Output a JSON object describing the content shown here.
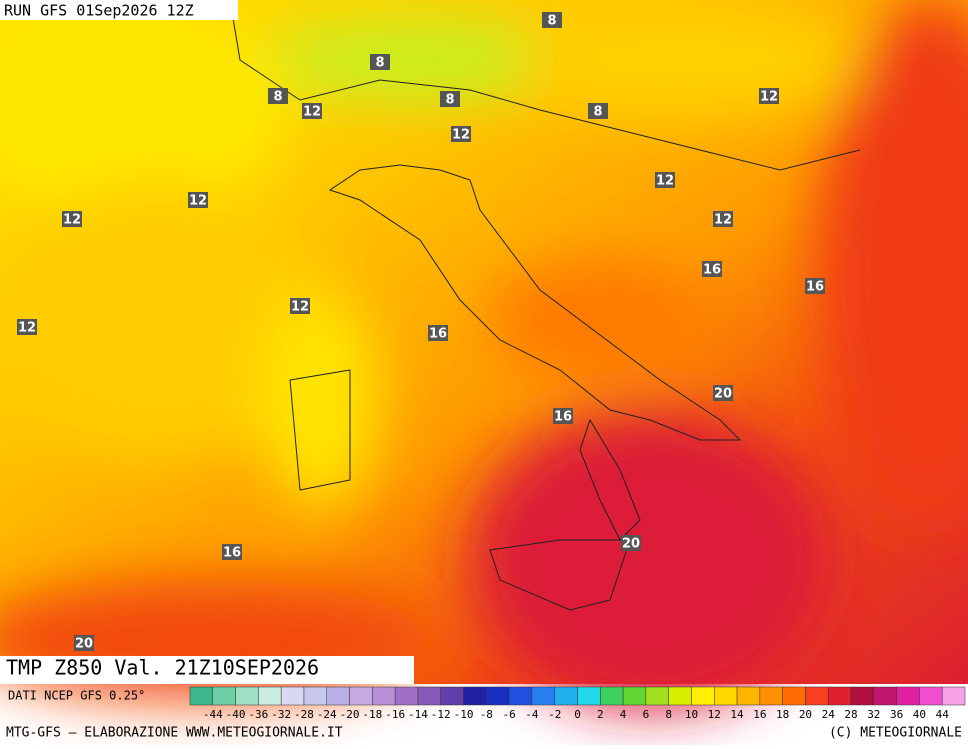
{
  "header": {
    "run": "RUN GFS 01Sep2026 12Z",
    "field": "TMP Z850 Val. 21Z10SEP2026"
  },
  "contour_labels": [
    8,
    8,
    8,
    12,
    8,
    12,
    8,
    12,
    12,
    12,
    12,
    12,
    16,
    16,
    12,
    12,
    16,
    20,
    16,
    20,
    16,
    20
  ],
  "colorbar": {
    "source": "DATI NCEP GFS 0.25°",
    "labels": [
      -44,
      -40,
      -36,
      -32,
      -28,
      -24,
      -20,
      -18,
      -16,
      -14,
      -12,
      -10,
      -8,
      -6,
      -4,
      -2,
      0,
      2,
      4,
      6,
      8,
      10,
      12,
      14,
      16,
      18,
      20,
      24,
      28,
      32,
      36,
      40,
      44
    ],
    "colors": [
      "#3cb88c",
      "#6fd0a8",
      "#9fe0c4",
      "#c8ece0",
      "#d8d8f0",
      "#c8c8ec",
      "#b8b0e4",
      "#c8a8e0",
      "#b890d8",
      "#a070c8",
      "#8858b8",
      "#6040a8",
      "#2020a0",
      "#1830c0",
      "#2050e0",
      "#2880f0",
      "#20b0f0",
      "#20d8e8",
      "#40d060",
      "#60d830",
      "#a0e020",
      "#d8f000",
      "#fff000",
      "#ffd800",
      "#ffb400",
      "#ff9000",
      "#ff6c00",
      "#f84020",
      "#e02030",
      "#b01040",
      "#c01870",
      "#e020a0",
      "#f050d0",
      "#f8a0e8"
    ]
  },
  "footer": {
    "left": "MTG-GFS — ELABORAZIONE WWW.METEOGIORNALE.IT",
    "right": "(C) METEOGIORNALE"
  }
}
